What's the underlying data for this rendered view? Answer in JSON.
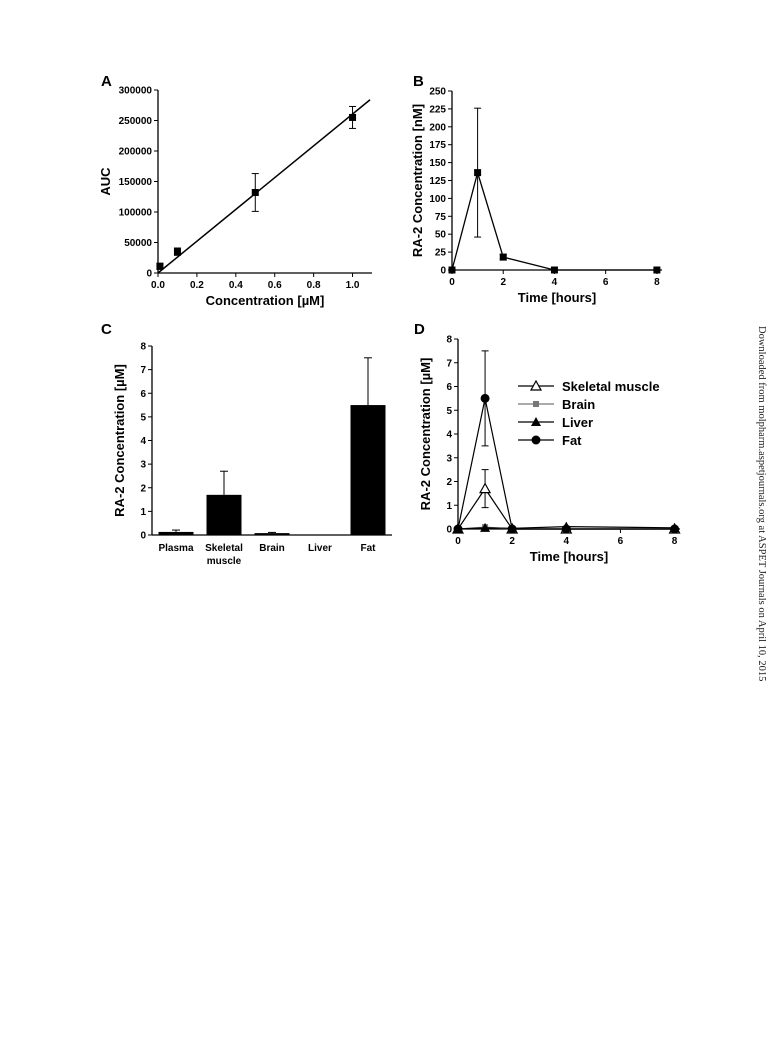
{
  "watermark": "Downloaded from molpharm.aspetjournals.org at ASPET Journals on April 10, 2015",
  "chart_data": [
    {
      "panel": "A",
      "type": "scatter",
      "xlabel": "Concentration [µM]",
      "ylabel": "AUC",
      "xlim": [
        0,
        1.1
      ],
      "ylim": [
        0,
        300000
      ],
      "xticks": [
        "0.0",
        "0.2",
        "0.4",
        "0.6",
        "0.8",
        "1.0"
      ],
      "yticks": [
        "0",
        "50000",
        "100000",
        "150000",
        "200000",
        "250000",
        "300000"
      ],
      "x": [
        0.01,
        0.1,
        0.5,
        1.0
      ],
      "y": [
        11000,
        35000,
        132000,
        255000
      ],
      "err": [
        5000,
        6000,
        31000,
        18000
      ],
      "fit_line": {
        "x": [
          0,
          1.09
        ],
        "y": [
          0,
          284000
        ]
      }
    },
    {
      "panel": "B",
      "type": "line",
      "xlabel": "Time [hours]",
      "ylabel": "RA-2 Concentration [nM]",
      "xlim": [
        0,
        8.2
      ],
      "ylim": [
        0,
        250
      ],
      "xticks": [
        "0",
        "2",
        "4",
        "6",
        "8"
      ],
      "yticks": [
        "0",
        "25",
        "50",
        "75",
        "100",
        "125",
        "150",
        "175",
        "200",
        "225",
        "250"
      ],
      "x": [
        0,
        1,
        2,
        4,
        8
      ],
      "y": [
        0,
        136,
        18,
        0,
        0
      ],
      "err": [
        0,
        90,
        4,
        0,
        0
      ]
    },
    {
      "panel": "C",
      "type": "bar",
      "xlabel": "",
      "ylabel": "RA-2 Concentration [µM]",
      "ylim": [
        0,
        8
      ],
      "yticks": [
        "0",
        "1",
        "2",
        "3",
        "4",
        "5",
        "6",
        "7",
        "8"
      ],
      "categories": [
        "Plasma",
        "Skeletal\nmuscle",
        "Brain",
        "Liver",
        "Fat"
      ],
      "values": [
        0.13,
        1.7,
        0.08,
        0.0,
        5.5
      ],
      "err": [
        0.08,
        1.0,
        0.03,
        0.0,
        2.0
      ]
    },
    {
      "panel": "D",
      "type": "line",
      "xlabel": "Time [hours]",
      "ylabel": "RA-2 Concentration [µM]",
      "xlim": [
        0,
        8.2
      ],
      "ylim": [
        0,
        8
      ],
      "xticks": [
        "0",
        "2",
        "4",
        "6",
        "8"
      ],
      "yticks": [
        "0",
        "1",
        "2",
        "3",
        "4",
        "5",
        "6",
        "7",
        "8"
      ],
      "legend_position": "top-right",
      "series": [
        {
          "name": "Skeletal muscle",
          "marker": "open-triangle",
          "color": "#000000",
          "x": [
            0,
            1,
            2,
            4,
            8
          ],
          "y": [
            0,
            1.7,
            0,
            0,
            0
          ],
          "err": [
            0,
            0.8,
            0,
            0,
            0
          ]
        },
        {
          "name": "Brain",
          "marker": "square",
          "color": "#777777",
          "x": [
            0,
            1,
            2,
            4,
            8
          ],
          "y": [
            0,
            0.08,
            0,
            0,
            0
          ],
          "err": [
            0,
            0,
            0,
            0,
            0
          ]
        },
        {
          "name": "Liver",
          "marker": "filled-triangle",
          "color": "#000000",
          "x": [
            0,
            1,
            2,
            4,
            8
          ],
          "y": [
            0,
            0.05,
            0.03,
            0.1,
            0.05
          ],
          "err": [
            0,
            0,
            0,
            0,
            0
          ]
        },
        {
          "name": "Fat",
          "marker": "circle",
          "color": "#000000",
          "x": [
            0,
            1,
            2,
            4,
            8
          ],
          "y": [
            0,
            5.5,
            0,
            0,
            0
          ],
          "err": [
            0,
            2.0,
            0,
            0,
            0
          ]
        }
      ]
    }
  ]
}
